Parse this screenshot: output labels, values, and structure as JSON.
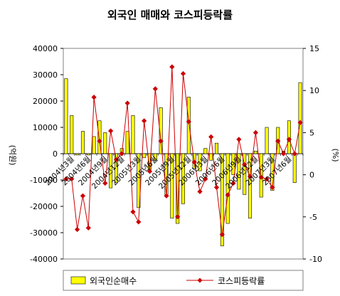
{
  "chart_data": {
    "type": "bar+line",
    "title": "외국인 매매와 코스피등락률",
    "y_left": {
      "label": "(억원)",
      "min": -40000,
      "max": 40000,
      "step": 10000,
      "ticks": [
        "40000",
        "30000",
        "20000",
        "10000",
        "0",
        "-10000",
        "-20000",
        "-30000",
        "-40000"
      ]
    },
    "y_right": {
      "label": "(%)",
      "min": -10,
      "max": 15,
      "step": 5,
      "ticks": [
        "15",
        "10",
        "5",
        "0",
        "-5",
        "-10"
      ]
    },
    "x_labels": [
      "2004년3월",
      "2004년6월",
      "2004년9월",
      "2004년12월",
      "2005년3월",
      "2005년6월",
      "2005년9월",
      "2005년12월",
      "2006년3월",
      "2006년6월",
      "2006년9월",
      "2006년12월",
      "2007년3월",
      "2007년6월"
    ],
    "series": [
      {
        "name": "외국인순매수",
        "type": "bar",
        "color": "#ffff00",
        "values": [
          28500,
          14500,
          -500,
          8500,
          -500,
          6500,
          12500,
          8000,
          -13000,
          -11000,
          2000,
          8500,
          14500,
          -20500,
          -1500,
          -6000,
          -2500,
          17500,
          -15500,
          -24500,
          -26500,
          -19000,
          21500,
          -5500,
          -6500,
          2000,
          -2500,
          4000,
          -35000,
          -26500,
          -8000,
          -13500,
          -15500,
          -24500,
          1000,
          -16500,
          10000,
          -14000,
          10000,
          1000,
          12500,
          -11000,
          27000
        ]
      },
      {
        "name": "코스피등락률",
        "type": "line",
        "color": "#cc0000",
        "marker": "diamond",
        "values": [
          -0.5,
          -0.5,
          -6.5,
          -2.5,
          -6.3,
          9.2,
          4.0,
          -1.0,
          5.2,
          1.8,
          2.5,
          8.5,
          -4.4,
          -5.6,
          6.4,
          0.4,
          10.2,
          4.0,
          -2.5,
          12.8,
          -5.0,
          12.0,
          6.3,
          1.5,
          -2.0,
          -0.5,
          4.5,
          -1.5,
          -7.1,
          -2.4,
          -1.0,
          4.2,
          1.2,
          -0.2,
          5.0,
          -0.3,
          -0.5,
          -1.5,
          4.0,
          2.5,
          4.2,
          2.5,
          6.2
        ]
      }
    ],
    "legend": [
      "외국인순매수",
      "코스피등락률"
    ],
    "legend_position": "bottom"
  }
}
